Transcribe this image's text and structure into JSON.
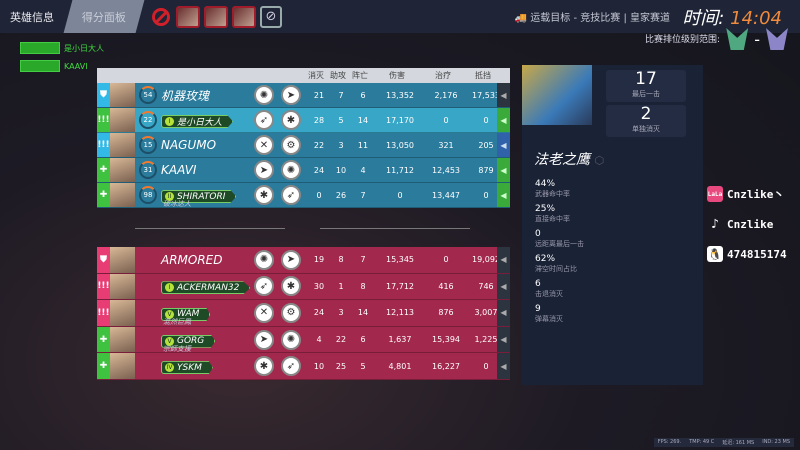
{
  "tabs": [
    {
      "label": "英雄信息"
    },
    {
      "label": "得分面板"
    }
  ],
  "mode": "运载目标 - 竞技比赛 | 皇家赛道",
  "timer": {
    "label": "时间:",
    "value": "14:04"
  },
  "rank_range_label": "比赛排位级别范围:",
  "rank_sep": "-",
  "feed": [
    {
      "name": "是小日大人"
    },
    {
      "name": "KAAVI"
    }
  ],
  "columns": [
    "消灭",
    "助攻",
    "阵亡",
    "伤害",
    "治疗",
    "抵挡"
  ],
  "blue_team": [
    {
      "role": "tank",
      "level": "54",
      "name": "机器玫瑰",
      "tagged": false,
      "stats": [
        "21",
        "7",
        "6",
        "13,352",
        "2,176",
        "17,533"
      ],
      "voice": "muted"
    },
    {
      "role": "damage",
      "level": "22",
      "name": "是小日大人",
      "tagged": true,
      "badge": "I",
      "stats": [
        "28",
        "5",
        "14",
        "17,170",
        "0",
        "0"
      ],
      "voice": "mic",
      "me": true
    },
    {
      "role": "damage",
      "level": "15",
      "name": "NAGUMO",
      "tagged": false,
      "stats": [
        "22",
        "3",
        "11",
        "13,050",
        "321",
        "205"
      ],
      "voice": "speaker"
    },
    {
      "role": "support",
      "level": "31",
      "name": "KAAVI",
      "tagged": false,
      "stats": [
        "24",
        "10",
        "4",
        "11,712",
        "12,453",
        "879"
      ],
      "voice": "speaker-green"
    },
    {
      "role": "support",
      "level": "98",
      "name": "SHIRATORI",
      "tagged": true,
      "badge": "II",
      "title": "破冰达人",
      "stats": [
        "0",
        "26",
        "7",
        "0",
        "13,447",
        "0"
      ],
      "voice": "speaker-green"
    }
  ],
  "red_team": [
    {
      "role": "tank",
      "name": "ARMORED",
      "tagged": false,
      "stats": [
        "19",
        "8",
        "7",
        "15,345",
        "0",
        "19,092"
      ]
    },
    {
      "role": "damage",
      "name": "ACKERMAN32",
      "tagged": true,
      "badge": "I",
      "stats": [
        "30",
        "1",
        "8",
        "17,712",
        "416",
        "746"
      ]
    },
    {
      "role": "damage",
      "name": "WAM",
      "tagged": true,
      "badge": "V",
      "title": "混然巨鳳",
      "stats": [
        "24",
        "3",
        "14",
        "12,113",
        "876",
        "3,007"
      ]
    },
    {
      "role": "support",
      "name": "GORG",
      "tagged": true,
      "badge": "V",
      "title": "宗師支援",
      "stats": [
        "4",
        "22",
        "6",
        "1,637",
        "15,394",
        "1,225"
      ]
    },
    {
      "role": "support",
      "name": "YSKM",
      "tagged": true,
      "badge": "IV",
      "stats": [
        "10",
        "25",
        "5",
        "4,801",
        "16,227",
        "0"
      ]
    }
  ],
  "hero_panel": {
    "hero_name": "法老之鹰",
    "top": [
      {
        "value": "17",
        "label": "最后一击"
      },
      {
        "value": "2",
        "label": "单独消灭"
      }
    ],
    "stats": [
      {
        "value": "44%",
        "label": "武器命中率"
      },
      {
        "value": "25%",
        "label": "直接命中率"
      },
      {
        "value": "0",
        "label": "远距离最后一击"
      },
      {
        "value": "62%",
        "label": "滞空时间占比"
      },
      {
        "value": "6",
        "label": "击退消灭"
      },
      {
        "value": "9",
        "label": "弹幕消灭"
      }
    ]
  },
  "social": [
    {
      "icon": "lala-icon",
      "icon_text": "LaLa",
      "text": "Cnzlike丶"
    },
    {
      "icon": "tiktok-icon",
      "text": "Cnzlike"
    },
    {
      "icon": "qq-icon",
      "text": "474815174"
    }
  ],
  "footer": {
    "fps": "FPS: 269.",
    "tmp": "TMP: 49 C",
    "latency": "延迟: 161 MS",
    "ind": "IND: 23 MS"
  },
  "colors": {
    "blue_team": "#2a7b9c",
    "red_team": "#a2284e",
    "accent_orange": "#f08a3c",
    "topbar": "#1f2436"
  }
}
